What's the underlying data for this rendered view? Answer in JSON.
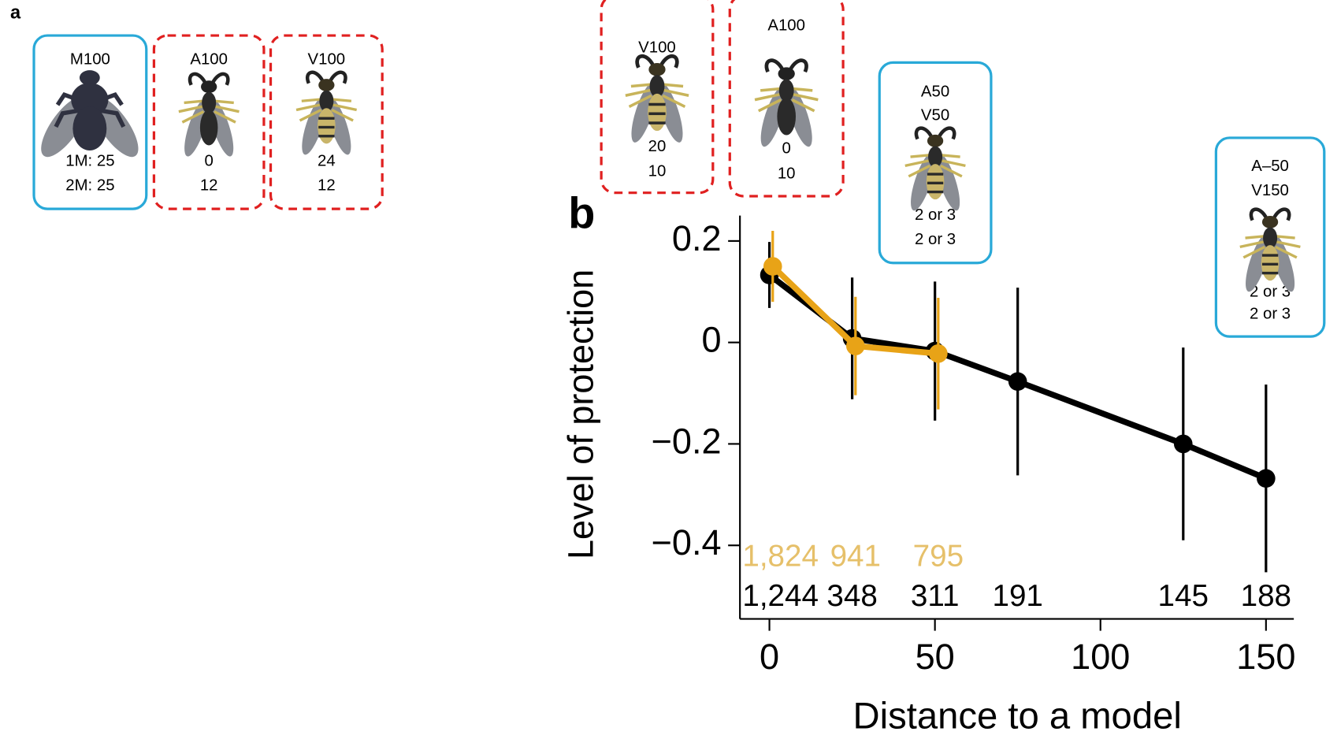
{
  "panels": [
    "a",
    "b"
  ],
  "boxes": [
    {
      "lines": [
        "M100",
        "1M: 25",
        "2M: 25"
      ],
      "border": "solid",
      "color": "#29a9d8"
    },
    {
      "lines": [
        "A100",
        "0",
        "12"
      ],
      "border": "dashed",
      "color": "#e02020"
    },
    {
      "lines": [
        "V100",
        "24",
        "12"
      ],
      "border": "dashed",
      "color": "#e02020"
    },
    {
      "lines": [
        "V100",
        "20",
        "10"
      ],
      "border": "dashed",
      "color": "#e02020"
    },
    {
      "lines": [
        "A100",
        "0",
        "10"
      ],
      "border": "dashed",
      "color": "#e02020"
    },
    {
      "lines": [
        "A50",
        "V50",
        "2 or 3",
        "2 or 3"
      ],
      "border": "solid",
      "color": "#29a9d8"
    },
    {
      "lines": [
        "A–50",
        "V150",
        "2 or 3",
        "2 or 3"
      ],
      "border": "solid",
      "color": "#29a9d8"
    }
  ],
  "chart_data": {
    "type": "line",
    "xlabel": "Distance to a model",
    "ylabel": "Level of protection",
    "xlim": [
      -8.9,
      158.4
    ],
    "ylim": [
      -0.545,
      0.25
    ],
    "xticks": [
      0,
      50,
      100,
      150
    ],
    "yticks": [
      0.2,
      {
        "value": 0,
        "label": "0"
      },
      {
        "value": -0.2,
        "label": "−0.2"
      },
      {
        "value": -0.4,
        "label": "−0.4"
      }
    ],
    "series": [
      {
        "color": "#e8a317",
        "count_color": "#e6c06a",
        "x": [
          1,
          26,
          51
        ],
        "values": [
          0.15,
          -0.007,
          -0.022
        ],
        "errors": [
          0.07,
          0.097,
          0.11
        ],
        "counts": [
          "1,824",
          "941",
          "795"
        ]
      },
      {
        "color": "#000000",
        "count_color": "#000000",
        "x": [
          0,
          25,
          50,
          75,
          125,
          150
        ],
        "values": [
          0.133,
          0.008,
          -0.017,
          -0.077,
          -0.2,
          -0.268
        ],
        "errors": [
          0.065,
          0.12,
          0.137,
          0.185,
          0.19,
          0.185
        ],
        "counts": [
          "1,244",
          "348",
          "311",
          "191",
          "145",
          "188"
        ]
      }
    ]
  }
}
